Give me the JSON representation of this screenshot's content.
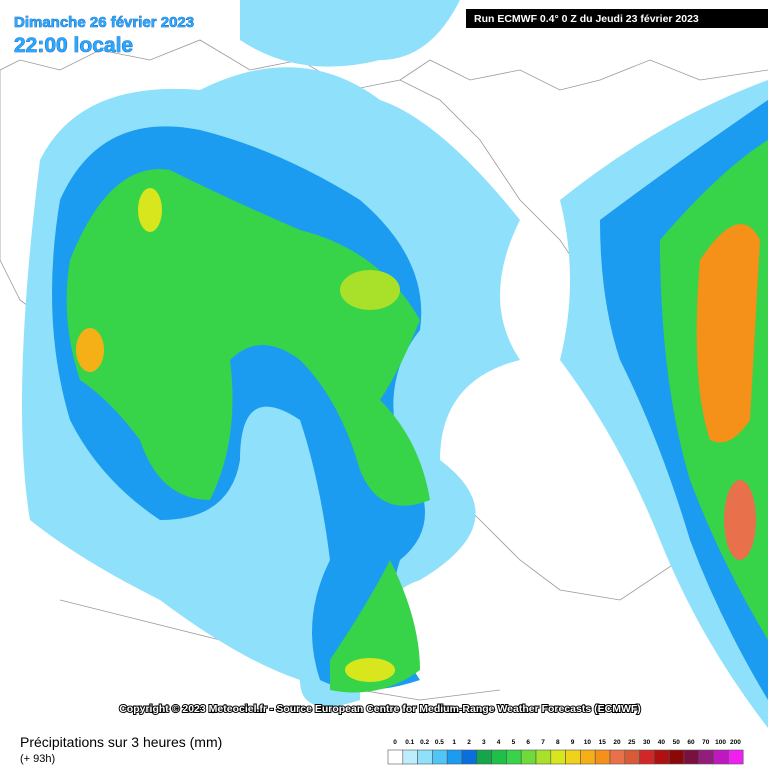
{
  "header": {
    "date": "Dimanche 26 février 2023",
    "time": "22:00 locale",
    "run": "Run ECMWF 0.4° 0 Z du Jeudi 23 février 2023"
  },
  "copyright": "Copyright © 2023 Meteociel.fr - Source European Centre for Medium-Range Weather Forecasts (ECMWF)",
  "footer": {
    "title": "Précipitations sur 3 heures (mm)",
    "lead": "(+ 93h)"
  },
  "legend": {
    "items": [
      {
        "label": "0",
        "color": "#ffffff"
      },
      {
        "label": "0.1",
        "color": "#bdeefb"
      },
      {
        "label": "0.2",
        "color": "#8fe0fa"
      },
      {
        "label": "0.5",
        "color": "#4fc6f5"
      },
      {
        "label": "1",
        "color": "#1c9cf0"
      },
      {
        "label": "2",
        "color": "#0a6fdc"
      },
      {
        "label": "3",
        "color": "#14a64a"
      },
      {
        "label": "4",
        "color": "#1fc04a"
      },
      {
        "label": "5",
        "color": "#37d44a"
      },
      {
        "label": "6",
        "color": "#6fdb3a"
      },
      {
        "label": "7",
        "color": "#a8e02a"
      },
      {
        "label": "8",
        "color": "#d8e61e"
      },
      {
        "label": "9",
        "color": "#f0d21a"
      },
      {
        "label": "10",
        "color": "#f5b018"
      },
      {
        "label": "15",
        "color": "#f59018"
      },
      {
        "label": "20",
        "color": "#e8704a"
      },
      {
        "label": "25",
        "color": "#d85a38"
      },
      {
        "label": "30",
        "color": "#d02828"
      },
      {
        "label": "40",
        "color": "#b01010"
      },
      {
        "label": "50",
        "color": "#8a0808"
      },
      {
        "label": "60",
        "color": "#7a1040"
      },
      {
        "label": "70",
        "color": "#941c7c"
      },
      {
        "label": "100",
        "color": "#c018c0"
      },
      {
        "label": "200",
        "color": "#f020f0"
      }
    ]
  }
}
